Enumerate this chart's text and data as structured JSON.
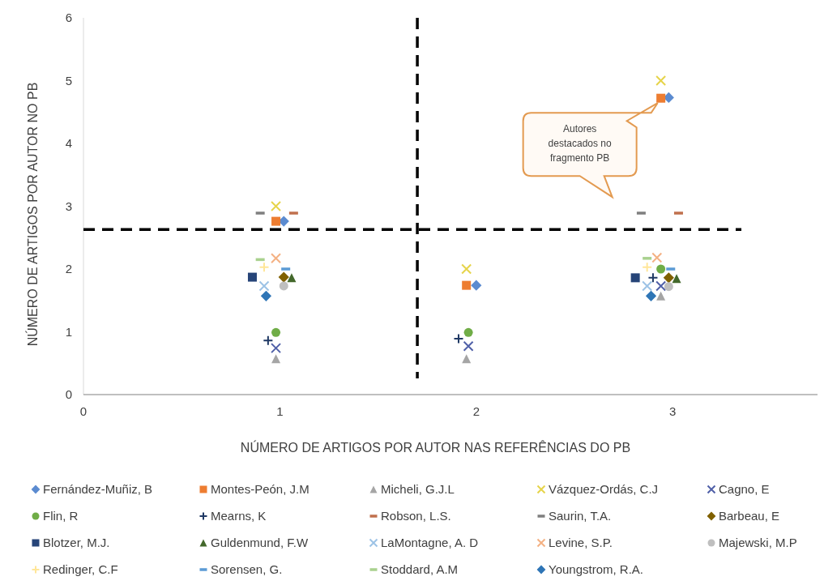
{
  "chart_data": {
    "type": "scatter",
    "xlabel": "NÚMERO DE ARTIGOS POR AUTOR NAS REFERÊNCIAS DO PB",
    "ylabel": "NÚMERO DE ARTIGOS POR AUTOR NO PB",
    "xlim": [
      0,
      3.75
    ],
    "xticks": [
      0,
      1,
      2,
      3
    ],
    "ylim": [
      0,
      6
    ],
    "yticks": [
      0,
      1,
      2,
      3,
      4,
      5,
      6
    ],
    "grid": false,
    "legend": "bottom",
    "ref_lines": [
      {
        "axis": "y",
        "value": 2.63,
        "color": "#000000",
        "line_style": "dashed"
      },
      {
        "axis": "x",
        "value": 1.7,
        "color": "#000000",
        "line_style": "dashed"
      }
    ],
    "annotations": [
      "Autores destacados no fragmento PB"
    ],
    "series": [
      {
        "name": "Fernández-Muñiz, B",
        "color": "#5b8bd0",
        "marker": "diamond",
        "x": [
          1.02,
          2.0,
          2.98
        ],
        "values": [
          2.76,
          1.74,
          4.73
        ]
      },
      {
        "name": "Montes-Peón, J.M",
        "color": "#ed7d31",
        "marker": "square",
        "x": [
          0.98,
          1.95,
          2.94
        ],
        "values": [
          2.76,
          1.74,
          4.72
        ]
      },
      {
        "name": "Micheli, G.J.L",
        "color": "#a5a5a5",
        "marker": "triangle",
        "x": [
          0.98,
          1.95,
          2.94
        ],
        "values": [
          0.57,
          0.57,
          1.57
        ]
      },
      {
        "name": "Vázquez-Ordás, C.J",
        "color": "#e6d44a",
        "marker": "x",
        "x": [
          0.98,
          1.95,
          2.94
        ],
        "values": [
          3.0,
          2.0,
          5.0
        ]
      },
      {
        "name": "Cagno, E",
        "color": "#5060a8",
        "marker": "x",
        "x": [
          0.98,
          1.96,
          2.94
        ],
        "values": [
          0.74,
          0.77,
          1.73
        ]
      },
      {
        "name": "Flin, R",
        "color": "#70ad47",
        "marker": "circle",
        "x": [
          0.98,
          1.96,
          2.94
        ],
        "values": [
          0.99,
          0.99,
          2.0
        ]
      },
      {
        "name": "Mearns, K",
        "color": "#1f3864",
        "marker": "plus",
        "x": [
          0.94,
          1.91,
          2.9
        ],
        "values": [
          0.86,
          0.89,
          1.86
        ]
      },
      {
        "name": "Robson, L.S.",
        "color": "#c0704d",
        "x": [
          1.07,
          3.03
        ],
        "values": [
          2.89,
          2.89
        ]
      },
      {
        "name": "Saurin, T.A.",
        "color": "#7f7f7f",
        "x": [
          0.9,
          2.84
        ],
        "values": [
          2.89,
          2.89
        ]
      },
      {
        "name": "Barbeau, E",
        "color": "#806000",
        "marker": "diamond",
        "x": [
          1.02,
          2.98
        ],
        "values": [
          1.87,
          1.86
        ]
      },
      {
        "name": "Blotzer, M.J.",
        "color": "#264478",
        "marker": "square",
        "x": [
          0.86,
          2.81
        ],
        "values": [
          1.87,
          1.86
        ]
      },
      {
        "name": "Guldenmund, F.W",
        "color": "#43682b",
        "marker": "triangle",
        "x": [
          1.06,
          3.02
        ],
        "values": [
          1.86,
          1.85
        ]
      },
      {
        "name": "LaMontagne, A. D",
        "color": "#9dc3e6",
        "marker": "x",
        "x": [
          0.92,
          2.87
        ],
        "values": [
          1.73,
          1.73
        ]
      },
      {
        "name": "Levine, S.P.",
        "color": "#f4b183",
        "marker": "x",
        "x": [
          0.98,
          2.92
        ],
        "values": [
          2.17,
          2.18
        ]
      },
      {
        "name": "Majewski, M.P",
        "color": "#bfbfbf",
        "marker": "circle",
        "x": [
          1.02,
          2.98
        ],
        "values": [
          1.73,
          1.72
        ]
      },
      {
        "name": "Redinger, C.F",
        "color": "#ffe699",
        "marker": "plus",
        "x": [
          0.92,
          2.87
        ],
        "values": [
          2.03,
          2.03
        ]
      },
      {
        "name": "Sorensen, G.",
        "color": "#5b9bd5",
        "x": [
          1.03,
          2.99
        ],
        "values": [
          2.0,
          2.0
        ]
      },
      {
        "name": "Stoddard, A.M",
        "color": "#a9d18e",
        "x": [
          0.9,
          2.87
        ],
        "values": [
          2.15,
          2.17
        ]
      },
      {
        "name": "Youngstrom, R.A.",
        "color": "#2e75b6",
        "marker": "diamond",
        "x": [
          0.93,
          2.89
        ],
        "values": [
          1.57,
          1.57
        ]
      }
    ]
  }
}
